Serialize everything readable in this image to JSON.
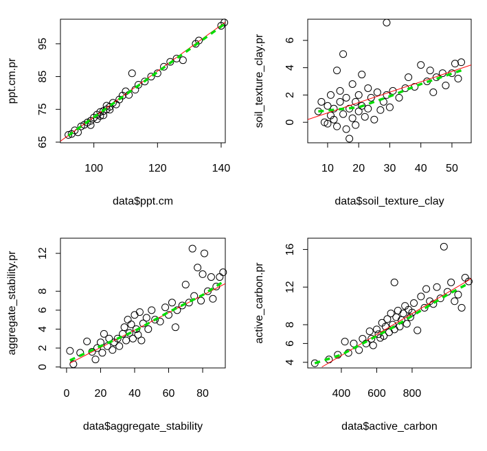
{
  "chart_data": [
    {
      "type": "scatter",
      "xlabel": "data$ppt.cm",
      "ylabel": "ppt.cm.pr",
      "color": "#000000",
      "x": [
        92,
        93,
        94,
        95,
        96,
        97,
        98,
        99,
        99,
        100,
        101,
        101,
        102,
        102,
        103,
        103,
        104,
        104,
        105,
        105,
        106,
        107,
        108,
        109,
        110,
        111,
        112,
        113,
        114,
        116,
        118,
        120,
        122,
        124,
        126,
        128,
        132,
        133,
        140,
        141
      ],
      "y": [
        67.2,
        67.5,
        68.6,
        68.0,
        69.8,
        70.3,
        71.0,
        71.5,
        70.2,
        72.5,
        73.4,
        72.0,
        73.0,
        74.2,
        74.5,
        73.2,
        75.0,
        76.1,
        75.8,
        74.9,
        77.0,
        76.5,
        78.0,
        79.2,
        80.5,
        79.4,
        86.0,
        81.0,
        82.5,
        83.5,
        85.0,
        86.0,
        88.0,
        89.5,
        90.5,
        90.0,
        95.0,
        96.0,
        100.5,
        101.5
      ],
      "xlim": [
        89.5,
        141.3
      ],
      "ylim": [
        64.8,
        102.5
      ],
      "xticks": [
        100,
        120,
        140
      ],
      "yticks": [
        65,
        75,
        85,
        95
      ],
      "fit": {
        "color": "#ff0000",
        "x": [
          89.5,
          141.3
        ],
        "y": [
          65.3,
          101.6
        ]
      },
      "smooth": {
        "color": "#00dd00",
        "x": [
          92,
          100,
          110,
          120,
          130,
          141
        ],
        "y": [
          67.0,
          72.6,
          79.5,
          86.4,
          93.3,
          101.0
        ]
      }
    },
    {
      "type": "scatter",
      "xlabel": "data$soil_texture_clay",
      "ylabel": "soil_texture_clay.pr",
      "color": "#000000",
      "x": [
        7,
        8,
        9,
        10,
        10,
        11,
        11,
        12,
        12,
        13,
        13,
        14,
        14,
        15,
        15,
        16,
        16,
        17,
        17,
        18,
        18,
        19,
        19,
        20,
        20,
        21,
        21,
        22,
        23,
        23,
        24,
        25,
        26,
        27,
        28,
        29,
        29,
        30,
        31,
        33,
        35,
        36,
        38,
        40,
        42,
        43,
        44,
        45,
        47,
        48,
        50,
        51,
        52,
        53
      ],
      "y": [
        0.8,
        1.5,
        0.0,
        -0.1,
        1.2,
        0.5,
        2.0,
        0.2,
        1.0,
        3.8,
        -0.3,
        1.5,
        2.3,
        5.0,
        0.6,
        1.8,
        -0.5,
        -1.2,
        1.0,
        2.8,
        0.3,
        1.5,
        -0.2,
        2.0,
        0.8,
        3.5,
        1.2,
        0.4,
        2.5,
        1.0,
        1.8,
        0.2,
        2.2,
        0.9,
        1.5,
        7.3,
        2.0,
        1.1,
        2.3,
        1.8,
        2.5,
        3.3,
        2.6,
        4.2,
        3.0,
        3.8,
        2.2,
        3.3,
        3.6,
        2.7,
        3.6,
        4.3,
        3.2,
        4.4
      ],
      "xlim": [
        3.6,
        56.2
      ],
      "ylim": [
        -1.5,
        7.55
      ],
      "xticks": [
        10,
        20,
        30,
        40,
        50
      ],
      "yticks": [
        0,
        2,
        4,
        6
      ],
      "fit": {
        "color": "#ff0000",
        "x": [
          3.6,
          56.2
        ],
        "y": [
          0.2,
          4.2
        ]
      },
      "smooth": {
        "color": "#00dd00",
        "x": [
          7,
          20,
          30,
          40,
          53
        ],
        "y": [
          0.8,
          1.1,
          1.9,
          2.8,
          3.8
        ]
      }
    },
    {
      "type": "scatter",
      "xlabel": "data$aggregate_stability",
      "ylabel": "aggregate_stability.pr",
      "color": "#000000",
      "x": [
        2,
        4,
        8,
        12,
        15,
        17,
        18,
        20,
        21,
        22,
        24,
        25,
        27,
        28,
        30,
        31,
        33,
        34,
        35,
        36,
        37,
        38,
        39,
        40,
        41,
        42,
        43,
        44,
        45,
        47,
        48,
        50,
        52,
        55,
        58,
        60,
        62,
        64,
        65,
        68,
        70,
        72,
        74,
        75,
        77,
        79,
        80,
        81,
        83,
        85,
        86,
        88,
        90,
        92
      ],
      "y": [
        1.7,
        0.3,
        1.5,
        2.7,
        1.6,
        0.8,
        2.0,
        2.6,
        1.5,
        3.5,
        2.2,
        3.0,
        1.8,
        2.6,
        3.0,
        2.2,
        3.5,
        4.2,
        2.8,
        5.0,
        3.6,
        4.5,
        3.0,
        5.5,
        4.0,
        3.4,
        5.8,
        2.8,
        4.6,
        5.2,
        4.0,
        6.0,
        5.0,
        4.8,
        6.3,
        5.5,
        6.8,
        4.2,
        6.0,
        6.5,
        8.7,
        6.8,
        12.5,
        7.5,
        10.5,
        7.0,
        9.8,
        12.0,
        8.0,
        9.5,
        7.2,
        8.5,
        9.5,
        10.0
      ],
      "xlim": [
        -3.6,
        93.3
      ],
      "ylim": [
        -0.1,
        13.6
      ],
      "xticks": [
        0,
        20,
        40,
        60,
        80
      ],
      "yticks": [
        0,
        2,
        4,
        6,
        8,
        12
      ],
      "fit": {
        "color": "#ff0000",
        "x": [
          2,
          93.3
        ],
        "y": [
          0.4,
          8.8
        ]
      },
      "smooth": {
        "color": "#00dd00",
        "x": [
          2,
          20,
          40,
          60,
          80,
          92
        ],
        "y": [
          0.7,
          2.2,
          3.8,
          5.8,
          7.6,
          9.0
        ]
      }
    },
    {
      "type": "scatter",
      "xlabel": "data$active_carbon",
      "ylabel": "active_carbon.pr",
      "color": "#000000",
      "x": [
        250,
        330,
        380,
        420,
        440,
        470,
        500,
        520,
        540,
        560,
        570,
        580,
        600,
        610,
        620,
        630,
        640,
        650,
        660,
        670,
        680,
        690,
        700,
        700,
        710,
        720,
        730,
        740,
        750,
        760,
        770,
        780,
        790,
        800,
        810,
        830,
        850,
        870,
        880,
        900,
        920,
        940,
        960,
        980,
        1000,
        1020,
        1040,
        1060,
        1080,
        1100,
        1120
      ],
      "y": [
        3.9,
        4.3,
        4.8,
        6.2,
        5.0,
        6.0,
        5.3,
        6.5,
        6.0,
        7.3,
        6.5,
        5.8,
        7.5,
        7.0,
        6.6,
        8.2,
        6.8,
        7.8,
        8.6,
        7.2,
        9.2,
        8.0,
        7.5,
        12.5,
        8.8,
        9.5,
        7.8,
        8.5,
        9.2,
        10.0,
        8.1,
        9.6,
        8.8,
        9.3,
        10.3,
        7.4,
        11.0,
        9.8,
        11.8,
        10.5,
        10.2,
        12.0,
        10.8,
        16.3,
        11.5,
        12.5,
        10.5,
        11.2,
        9.8,
        13.0,
        12.6
      ],
      "xlim": [
        210,
        1134
      ],
      "ylim": [
        3.4,
        17.2
      ],
      "xticks": [
        400,
        600,
        800
      ],
      "yticks": [
        4,
        6,
        8,
        12,
        16
      ],
      "fit": {
        "color": "#ff0000",
        "x": [
          290,
          1134
        ],
        "y": [
          3.5,
          12.9
        ]
      },
      "smooth": {
        "color": "#00dd00",
        "x": [
          250,
          400,
          550,
          700,
          850,
          1000,
          1120
        ],
        "y": [
          3.9,
          4.8,
          6.3,
          7.8,
          9.5,
          11.2,
          12.4
        ]
      }
    }
  ]
}
